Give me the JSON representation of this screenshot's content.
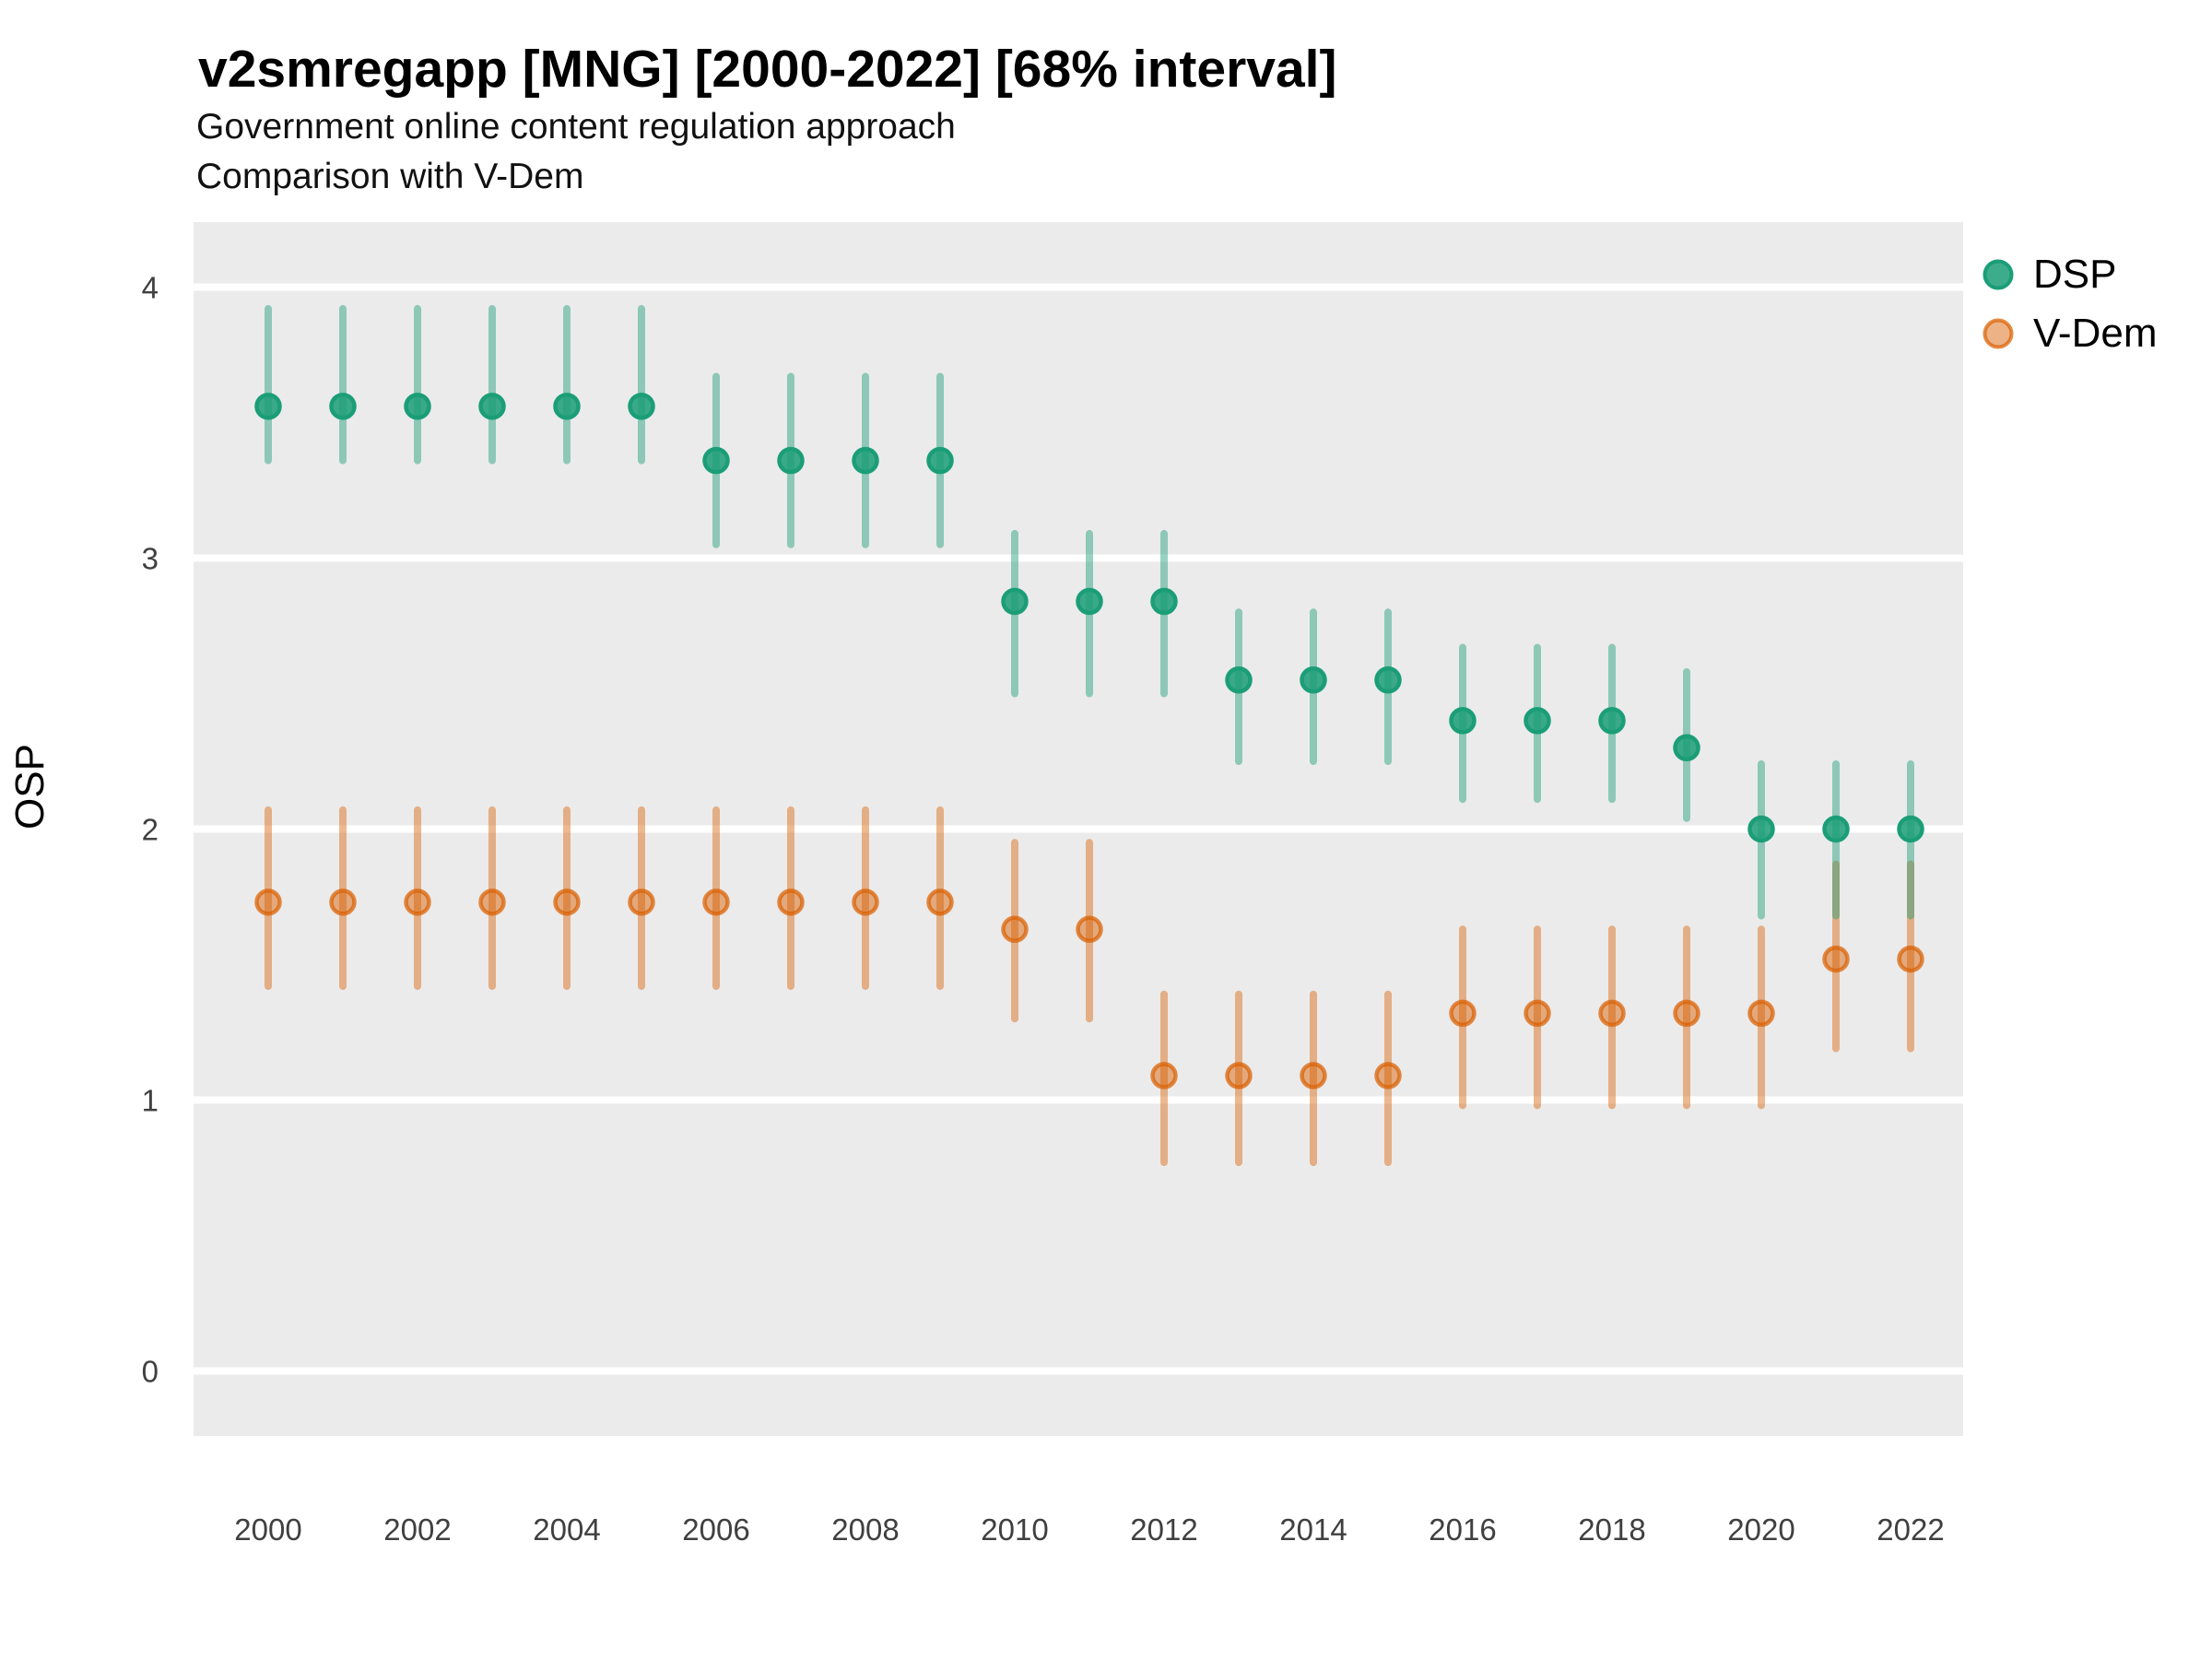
{
  "title": "v2smregapp [MNG] [2000-2022] [68% interval]",
  "subtitle1": "Government online content regulation approach",
  "subtitle2": "Comparison with V-Dem",
  "y_axis": {
    "label": "OSP",
    "ticks": [
      0,
      1,
      2,
      3,
      4
    ]
  },
  "x_axis": {
    "ticks": [
      2000,
      2002,
      2004,
      2006,
      2008,
      2010,
      2012,
      2014,
      2016,
      2018,
      2020,
      2022
    ]
  },
  "legend": [
    {
      "label": "DSP",
      "fill": "rgba(27,158,119,0.85)",
      "stroke": "#1B9E77"
    },
    {
      "label": "V-Dem",
      "fill": "rgba(217,95,2,0.48)",
      "stroke": "rgba(217,95,2,0.72)"
    }
  ],
  "colors": {
    "panel": "#EBEBEB",
    "gridline": "#FFFFFF",
    "dsp_base": "#1B9E77",
    "vdem_base": "#D95F02",
    "tick_text": "#404040"
  },
  "chart_data": {
    "type": "pointrange-scatter",
    "title": "v2smregapp [MNG] [2000-2022] [68% interval]",
    "interval": "68%",
    "xlabel": "",
    "ylabel": "OSP",
    "xlim": [
      1999,
      2022.7
    ],
    "ylim": [
      -0.25,
      4.25
    ],
    "grid": "major-horizontal-white-on-gray",
    "legend_position": "right",
    "x": [
      2000,
      2001,
      2002,
      2003,
      2004,
      2005,
      2006,
      2007,
      2008,
      2009,
      2010,
      2011,
      2012,
      2013,
      2014,
      2015,
      2016,
      2017,
      2018,
      2019,
      2020,
      2021,
      2022
    ],
    "series": [
      {
        "name": "DSP",
        "bar_color": "rgba(27,158,119,0.45)",
        "point_fill": "rgba(27,158,119,0.85)",
        "point_stroke": "#1B9E77",
        "est": [
          3.56,
          3.56,
          3.56,
          3.56,
          3.56,
          3.56,
          3.36,
          3.36,
          3.36,
          3.36,
          2.84,
          2.84,
          2.84,
          2.55,
          2.55,
          2.55,
          2.4,
          2.4,
          2.4,
          2.3,
          2.0,
          2.0,
          2.0
        ],
        "lo": [
          3.36,
          3.36,
          3.36,
          3.36,
          3.36,
          3.36,
          3.05,
          3.05,
          3.05,
          3.05,
          2.5,
          2.5,
          2.5,
          2.25,
          2.25,
          2.25,
          2.11,
          2.11,
          2.11,
          2.04,
          1.68,
          1.68,
          1.68
        ],
        "hi": [
          3.92,
          3.92,
          3.92,
          3.92,
          3.92,
          3.92,
          3.67,
          3.67,
          3.67,
          3.67,
          3.09,
          3.09,
          3.09,
          2.8,
          2.8,
          2.8,
          2.67,
          2.67,
          2.67,
          2.58,
          2.24,
          2.24,
          2.24
        ]
      },
      {
        "name": "V-Dem",
        "bar_color": "rgba(217,95,2,0.44)",
        "point_fill": "rgba(217,95,2,0.48)",
        "point_stroke": "rgba(217,95,2,0.72)",
        "est": [
          1.73,
          1.73,
          1.73,
          1.73,
          1.73,
          1.73,
          1.73,
          1.73,
          1.73,
          1.73,
          1.63,
          1.63,
          1.09,
          1.09,
          1.09,
          1.09,
          1.32,
          1.32,
          1.32,
          1.32,
          1.32,
          1.52,
          1.52
        ],
        "lo": [
          1.42,
          1.42,
          1.42,
          1.42,
          1.42,
          1.42,
          1.42,
          1.42,
          1.42,
          1.42,
          1.3,
          1.3,
          0.77,
          0.77,
          0.77,
          0.77,
          0.98,
          0.98,
          0.98,
          0.98,
          0.98,
          1.19,
          1.19
        ],
        "hi": [
          2.07,
          2.07,
          2.07,
          2.07,
          2.07,
          2.07,
          2.07,
          2.07,
          2.07,
          2.07,
          1.95,
          1.95,
          1.39,
          1.39,
          1.39,
          1.39,
          1.63,
          1.63,
          1.63,
          1.63,
          1.63,
          1.87,
          1.87
        ]
      }
    ]
  }
}
